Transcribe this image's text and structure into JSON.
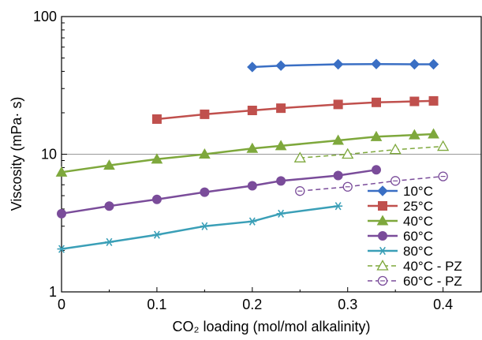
{
  "chart_data": {
    "type": "line",
    "title": "",
    "xlabel": "CO₂ loading (mol/mol alkalinity)",
    "ylabel": "Viscosity (mPa· s)",
    "xlim": [
      0,
      0.44
    ],
    "ylim": [
      1,
      100
    ],
    "yscale": "log",
    "x_ticks": [
      0,
      0.1,
      0.2,
      0.3,
      0.4
    ],
    "x_tick_labels": [
      "0",
      "0.1",
      "0.2",
      "0.3",
      "0.4"
    ],
    "y_ticks": [
      1,
      10,
      100
    ],
    "y_tick_labels": [
      "1",
      "10",
      "100"
    ],
    "grid": "horizontal line at 10",
    "legend_position": "bottom-right",
    "series": [
      {
        "name": "10°C",
        "color": "#3a6fc4",
        "marker": "diamond",
        "filled": true,
        "dashed": false,
        "points": [
          [
            0.2,
            43
          ],
          [
            0.23,
            44
          ],
          [
            0.29,
            45
          ],
          [
            0.33,
            45.2
          ],
          [
            0.37,
            45
          ],
          [
            0.39,
            45
          ]
        ]
      },
      {
        "name": "25°C",
        "color": "#c0504d",
        "marker": "square",
        "filled": true,
        "dashed": false,
        "points": [
          [
            0.1,
            18
          ],
          [
            0.15,
            19.5
          ],
          [
            0.2,
            20.8
          ],
          [
            0.23,
            21.6
          ],
          [
            0.29,
            23
          ],
          [
            0.33,
            23.8
          ],
          [
            0.37,
            24.2
          ],
          [
            0.39,
            24.4
          ]
        ]
      },
      {
        "name": "40°C",
        "color": "#7ea83c",
        "marker": "triangle",
        "filled": true,
        "dashed": false,
        "points": [
          [
            0,
            7.4
          ],
          [
            0.05,
            8.3
          ],
          [
            0.1,
            9.2
          ],
          [
            0.15,
            10
          ],
          [
            0.2,
            11
          ],
          [
            0.23,
            11.5
          ],
          [
            0.29,
            12.6
          ],
          [
            0.33,
            13.4
          ],
          [
            0.37,
            13.8
          ],
          [
            0.39,
            14
          ]
        ]
      },
      {
        "name": "60°C",
        "color": "#7a4c9a",
        "marker": "circle",
        "filled": true,
        "dashed": false,
        "points": [
          [
            0,
            3.7
          ],
          [
            0.05,
            4.2
          ],
          [
            0.1,
            4.7
          ],
          [
            0.15,
            5.3
          ],
          [
            0.2,
            5.9
          ],
          [
            0.23,
            6.4
          ],
          [
            0.29,
            7
          ],
          [
            0.33,
            7.7
          ]
        ]
      },
      {
        "name": "80°C",
        "color": "#3a9fb7",
        "marker": "asterisk",
        "filled": true,
        "dashed": false,
        "points": [
          [
            0,
            2.05
          ],
          [
            0.05,
            2.3
          ],
          [
            0.1,
            2.6
          ],
          [
            0.15,
            3
          ],
          [
            0.2,
            3.25
          ],
          [
            0.23,
            3.7
          ],
          [
            0.29,
            4.2
          ]
        ]
      },
      {
        "name": "40°C - PZ",
        "color": "#7ea83c",
        "marker": "triangle",
        "filled": false,
        "dashed": true,
        "points": [
          [
            0.25,
            9.4
          ],
          [
            0.3,
            10
          ],
          [
            0.35,
            10.8
          ],
          [
            0.4,
            11.4
          ]
        ]
      },
      {
        "name": "60°C - PZ",
        "color": "#7a4c9a",
        "marker": "circle",
        "filled": false,
        "dashed": true,
        "points": [
          [
            0.25,
            5.4
          ],
          [
            0.3,
            5.8
          ],
          [
            0.35,
            6.4
          ],
          [
            0.4,
            6.9
          ]
        ]
      }
    ]
  }
}
